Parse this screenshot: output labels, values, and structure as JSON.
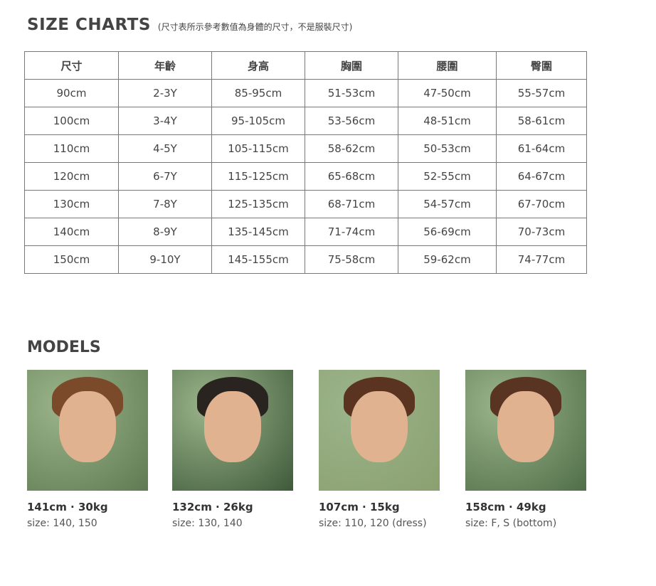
{
  "size_chart": {
    "title": "SIZE CHARTS",
    "note": "(尺寸表所示參考數值為身體的尺寸，不是服裝尺寸)",
    "headers": [
      "尺寸",
      "年齡",
      "身高",
      "胸圍",
      "腰圍",
      "臀圍"
    ],
    "rows": [
      [
        "90cm",
        "2-3Y",
        "85-95cm",
        "51-53cm",
        "47-50cm",
        "55-57cm"
      ],
      [
        "100cm",
        "3-4Y",
        "95-105cm",
        "53-56cm",
        "48-51cm",
        "58-61cm"
      ],
      [
        "110cm",
        "4-5Y",
        "105-115cm",
        "58-62cm",
        "50-53cm",
        "61-64cm"
      ],
      [
        "120cm",
        "6-7Y",
        "115-125cm",
        "65-68cm",
        "52-55cm",
        "64-67cm"
      ],
      [
        "130cm",
        "7-8Y",
        "125-135cm",
        "68-71cm",
        "54-57cm",
        "67-70cm"
      ],
      [
        "140cm",
        "8-9Y",
        "135-145cm",
        "71-74cm",
        "56-69cm",
        "70-73cm"
      ],
      [
        "150cm",
        "9-10Y",
        "145-155cm",
        "75-58cm",
        "59-62cm",
        "74-77cm"
      ]
    ]
  },
  "models": {
    "title": "MODELS",
    "items": [
      {
        "stats": "141cm · 30kg",
        "size": "size: 140, 150",
        "bg": "#5f7a52",
        "hair": "#7a4a2a"
      },
      {
        "stats": "132cm · 26kg",
        "size": "size: 130, 140",
        "bg": "#3e5a3a",
        "hair": "#2a2420"
      },
      {
        "stats": "107cm · 15kg",
        "size": "size: 110, 120 (dress)",
        "bg": "#8aa070",
        "hair": "#5a3420"
      },
      {
        "stats": "158cm · 49kg",
        "size": "size: F, S (bottom)",
        "bg": "#4f6e48",
        "hair": "#5a3422"
      }
    ]
  }
}
